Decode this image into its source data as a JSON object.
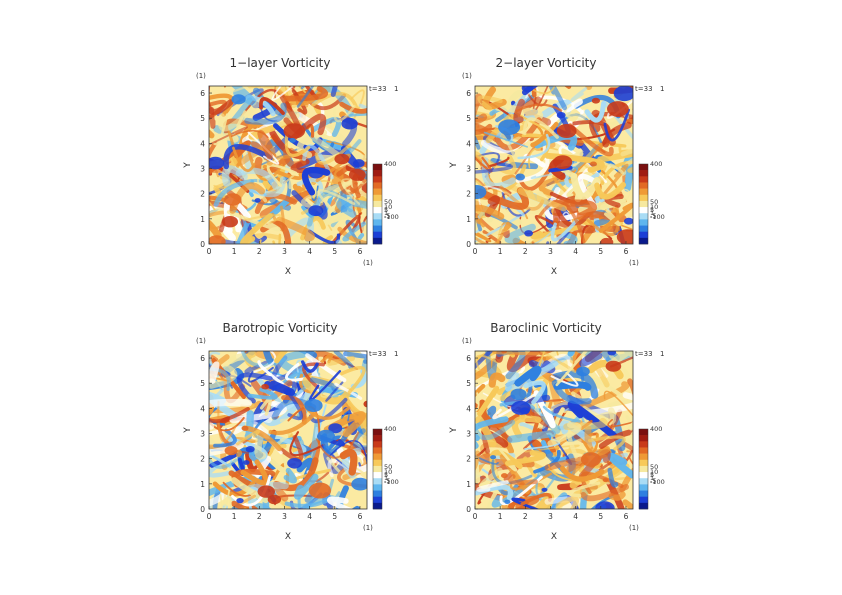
{
  "page": {
    "size_units": "(1)"
  },
  "colorbar": {
    "tick_labels": [
      "400",
      "50",
      "10",
      "5",
      "1",
      "-5",
      "-100"
    ],
    "colors": [
      "#0a1a8c",
      "#1c3fd6",
      "#2e7fe0",
      "#5fb6ee",
      "#a9dcf5",
      "#ffffff",
      "#f6e9a0",
      "#f7c95a",
      "#ef9a36",
      "#e26a25",
      "#c93a1a",
      "#a01c12",
      "#7a1010"
    ]
  },
  "chart_data": [
    {
      "type": "heatmap",
      "title": "1−layer Vorticity",
      "xlabel": "X",
      "ylabel": "Y",
      "xlim": [
        0,
        6.28
      ],
      "ylim": [
        0,
        6.28
      ],
      "xticks": [
        "0",
        "1",
        "2",
        "3",
        "4",
        "5",
        "6"
      ],
      "yticks": [
        "0",
        "1",
        "2",
        "3",
        "4",
        "5",
        "6"
      ],
      "unit_label": "(1)",
      "time_label": "t=33",
      "time_marker": "1",
      "colorbar_ticks": [
        "400",
        "50",
        "10",
        "5",
        "1",
        "-5",
        "-100"
      ],
      "pattern_seed": 1,
      "red_bias": 0.35
    },
    {
      "type": "heatmap",
      "title": "2−layer Vorticity",
      "xlabel": "X",
      "ylabel": "Y",
      "xlim": [
        0,
        6.28
      ],
      "ylim": [
        0,
        6.28
      ],
      "xticks": [
        "0",
        "1",
        "2",
        "3",
        "4",
        "5",
        "6"
      ],
      "yticks": [
        "0",
        "1",
        "2",
        "3",
        "4",
        "5",
        "6"
      ],
      "unit_label": "(1)",
      "time_label": "t=33",
      "time_marker": "1",
      "colorbar_ticks": [
        "400",
        "50",
        "10",
        "5",
        "1",
        "-5",
        "-100"
      ],
      "pattern_seed": 2,
      "red_bias": 0.3
    },
    {
      "type": "heatmap",
      "title": "Barotropic Vorticity",
      "xlabel": "X",
      "ylabel": "Y",
      "xlim": [
        0,
        6.28
      ],
      "ylim": [
        0,
        6.28
      ],
      "xticks": [
        "0",
        "1",
        "2",
        "3",
        "4",
        "5",
        "6"
      ],
      "yticks": [
        "0",
        "1",
        "2",
        "3",
        "4",
        "5",
        "6"
      ],
      "unit_label": "(1)",
      "time_label": "t=33",
      "time_marker": "1",
      "colorbar_ticks": [
        "400",
        "50",
        "10",
        "5",
        "1",
        "-5",
        "-100"
      ],
      "pattern_seed": 3,
      "red_bias": 0.05
    },
    {
      "type": "heatmap",
      "title": "Baroclinic Vorticity",
      "xlabel": "X",
      "ylabel": "Y",
      "xlim": [
        0,
        6.28
      ],
      "ylim": [
        0,
        6.28
      ],
      "xticks": [
        "0",
        "1",
        "2",
        "3",
        "4",
        "5",
        "6"
      ],
      "yticks": [
        "0",
        "1",
        "2",
        "3",
        "4",
        "5",
        "6"
      ],
      "unit_label": "(1)",
      "time_label": "t=33",
      "time_marker": "1",
      "colorbar_ticks": [
        "400",
        "50",
        "10",
        "5",
        "1",
        "-5",
        "-100"
      ],
      "pattern_seed": 4,
      "red_bias": 0.25
    }
  ]
}
